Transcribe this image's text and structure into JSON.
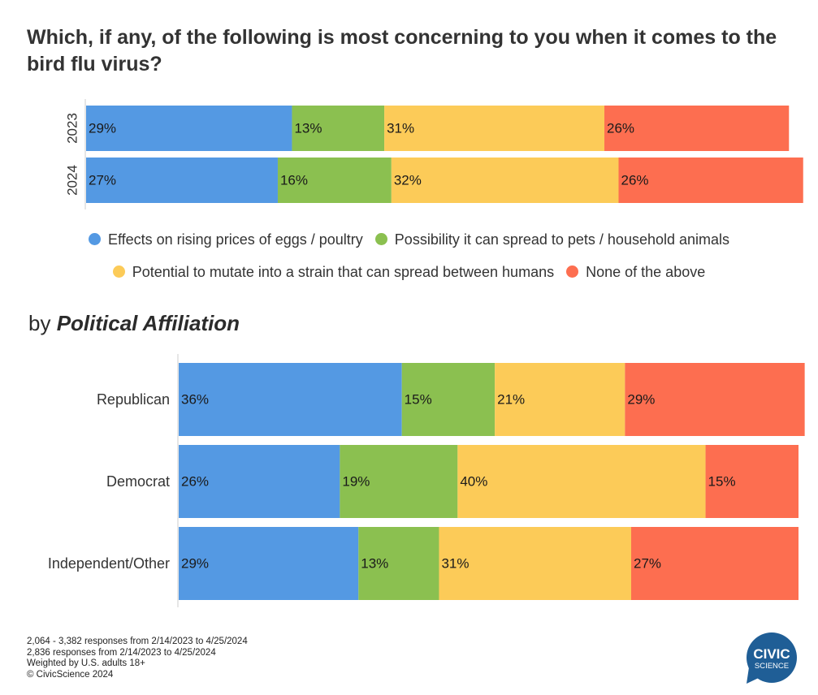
{
  "title": "Which, if any, of the following is most concerning to you when it comes to the bird flu virus?",
  "legend": [
    {
      "label": "Effects on rising prices of eggs / poultry",
      "color": "#5499E3"
    },
    {
      "label": "Possibility it can spread to pets / household animals",
      "color": "#8BC050"
    },
    {
      "label": "Potential to mutate into a strain that can spread between humans",
      "color": "#FCCB58"
    },
    {
      "label": "None of the above",
      "color": "#FD6E50"
    }
  ],
  "section": {
    "prefix": "by",
    "label": "Political Affiliation"
  },
  "chart_data": [
    {
      "type": "bar",
      "stacked": true,
      "orientation": "horizontal",
      "categories": [
        "2023",
        "2024"
      ],
      "series": [
        {
          "name": "Effects on rising prices of eggs / poultry",
          "values": [
            29,
            27
          ],
          "labels": [
            "29%",
            "27%"
          ]
        },
        {
          "name": "Possibility it can spread to pets / household animals",
          "values": [
            13,
            16
          ],
          "labels": [
            "13%",
            "16%"
          ]
        },
        {
          "name": "Potential to mutate into a strain that can spread between humans",
          "values": [
            31,
            32
          ],
          "labels": [
            "31%",
            "32%"
          ]
        },
        {
          "name": "None of the above",
          "values": [
            26,
            26
          ],
          "labels": [
            "26%",
            "26%"
          ]
        }
      ],
      "xlim": [
        0,
        100
      ]
    },
    {
      "type": "bar",
      "stacked": true,
      "orientation": "horizontal",
      "categories": [
        "Republican",
        "Democrat",
        "Independent/Other"
      ],
      "series": [
        {
          "name": "Effects on rising prices of eggs / poultry",
          "values": [
            36,
            26,
            29
          ],
          "labels": [
            "36%",
            "26%",
            "29%"
          ]
        },
        {
          "name": "Possibility it can spread to pets / household animals",
          "values": [
            15,
            19,
            13
          ],
          "labels": [
            "15%",
            "19%",
            "13%"
          ]
        },
        {
          "name": "Potential to mutate into a strain that can spread between humans",
          "values": [
            21,
            40,
            31
          ],
          "labels": [
            "21%",
            "40%",
            "31%"
          ]
        },
        {
          "name": "None of the above",
          "values": [
            29,
            15,
            27
          ],
          "labels": [
            "29%",
            "15%",
            "27%"
          ]
        }
      ],
      "xlim": [
        0,
        100
      ]
    }
  ],
  "footnotes": [
    "2,064 - 3,382 responses from 2/14/2023 to 4/25/2024",
    "2,836 responses from 2/14/2023 to 4/25/2024",
    "Weighted by U.S. adults 18+",
    "© CivicScience 2024"
  ],
  "logo": {
    "line1": "CIVIC",
    "line2": "SCIENCE",
    "color": "#1F5E96"
  }
}
